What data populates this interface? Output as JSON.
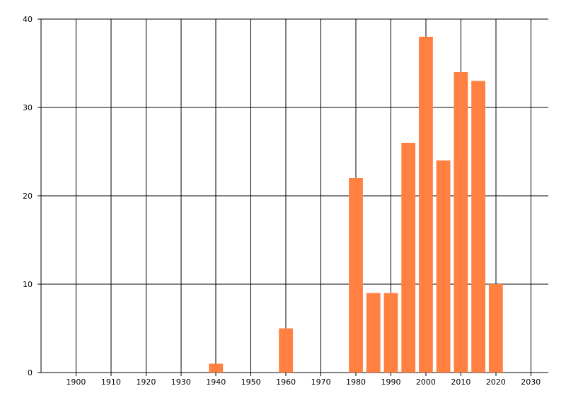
{
  "chart_data": {
    "type": "bar",
    "x": [
      1940,
      1960,
      1980,
      1985,
      1990,
      1995,
      2000,
      2005,
      2010,
      2015,
      2020
    ],
    "values": [
      1,
      5,
      22,
      9,
      9,
      26,
      38,
      24,
      34,
      33,
      10
    ],
    "color": "#ff8040",
    "xlim": [
      1890,
      2035
    ],
    "xticks": [
      1900,
      1910,
      1920,
      1930,
      1940,
      1950,
      1960,
      1970,
      1980,
      1990,
      2000,
      2010,
      2020,
      2030
    ],
    "ylim": [
      0,
      40
    ],
    "yticks": [
      0,
      10,
      20,
      30,
      40
    ],
    "grid": true
  }
}
